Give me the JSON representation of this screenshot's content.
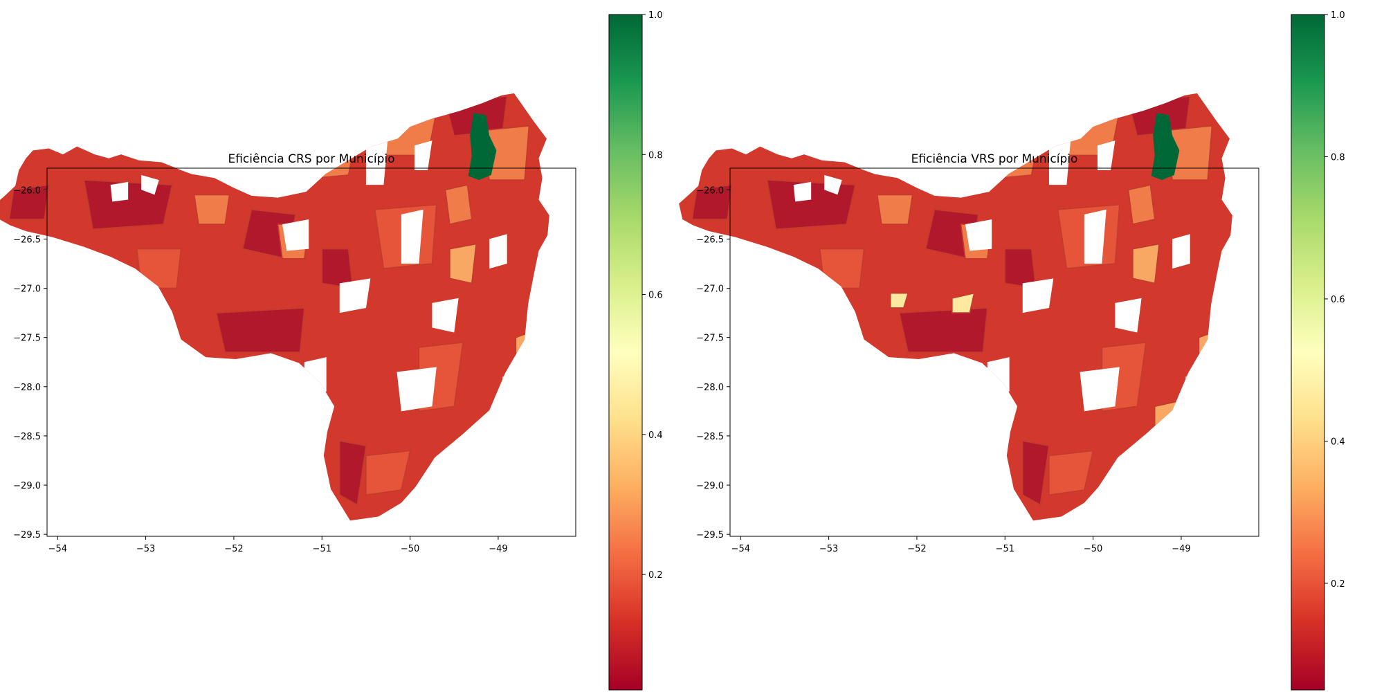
{
  "panels": [
    {
      "id": "crs",
      "title": "Eficiência CRS por Município",
      "x_ticks": [
        "−54",
        "−53",
        "−52",
        "−51",
        "−50",
        "−49"
      ],
      "y_ticks": [
        "−26.0",
        "−26.5",
        "−27.0",
        "−27.5",
        "−28.0",
        "−28.5",
        "−29.0",
        "−29.5"
      ],
      "colorbar_ticks": [
        "0.2",
        "0.4",
        "0.6",
        "0.8",
        "1.0"
      ],
      "colorbar_range": [
        0.035,
        1.0
      ],
      "xlim": [
        -54.12,
        -48.12
      ],
      "ylim": [
        -29.52,
        -25.78
      ]
    },
    {
      "id": "vrs",
      "title": "Eficiência VRS por Município",
      "x_ticks": [
        "−54",
        "−53",
        "−52",
        "−51",
        "−50",
        "−49"
      ],
      "y_ticks": [
        "−26.0",
        "−26.5",
        "−27.0",
        "−27.5",
        "−28.0",
        "−28.5",
        "−29.0",
        "−29.5"
      ],
      "colorbar_ticks": [
        "0.2",
        "0.4",
        "0.6",
        "0.8",
        "1.0"
      ],
      "colorbar_range": [
        0.05,
        1.0
      ],
      "xlim": [
        -54.12,
        -48.12
      ],
      "ylim": [
        -29.52,
        -25.78
      ]
    }
  ],
  "colormap": {
    "name": "RdYlGn",
    "stops": [
      "#a50026",
      "#d73027",
      "#f46d43",
      "#fdae61",
      "#fee08b",
      "#ffffbf",
      "#d9ef8b",
      "#a6d96a",
      "#66bd63",
      "#1a9850",
      "#006837"
    ]
  },
  "map_colors": {
    "dark_red": "#b2182b",
    "red": "#d3382c",
    "orange_red": "#e6553a",
    "orange": "#f07c4a",
    "light_orange": "#f9a864",
    "pale_yellow": "#fde9a0",
    "green": "#006837",
    "boundary": "#c23b2e"
  }
}
